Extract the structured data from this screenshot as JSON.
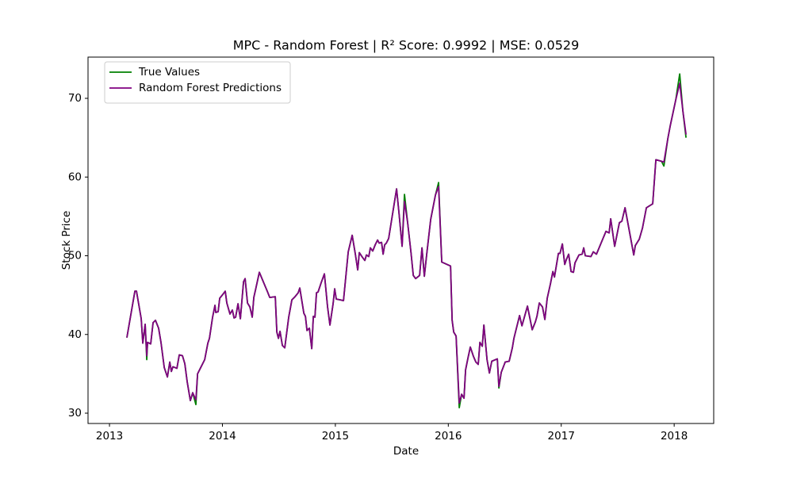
{
  "chart_data": {
    "type": "line",
    "title": "MPC - Random Forest | R² Score: 0.9992 | MSE: 0.0529",
    "xlabel": "Date",
    "ylabel": "Stock Price",
    "xlim": [
      2012.81,
      2018.35
    ],
    "ylim": [
      28.69,
      75.24
    ],
    "xticks": [
      2013,
      2014,
      2015,
      2016,
      2017,
      2018
    ],
    "yticks": [
      30,
      40,
      50,
      60,
      70
    ],
    "grid": false,
    "legend": "upper left",
    "x": [
      2013.154,
      2013.225,
      2013.239,
      2013.281,
      2013.295,
      2013.316,
      2013.33,
      2013.337,
      2013.365,
      2013.386,
      2013.407,
      2013.435,
      2013.456,
      2013.485,
      2013.513,
      2013.534,
      2013.548,
      2013.562,
      2013.597,
      2013.618,
      2013.646,
      2013.667,
      2013.688,
      2013.716,
      2013.737,
      2013.765,
      2013.78,
      2013.808,
      2013.843,
      2013.871,
      2013.885,
      2013.913,
      2013.934,
      2013.941,
      2013.962,
      2013.976,
      2014.004,
      2014.025,
      2014.039,
      2014.067,
      2014.088,
      2014.103,
      2014.117,
      2014.138,
      2014.159,
      2014.187,
      2014.201,
      2014.222,
      2014.243,
      2014.264,
      2014.278,
      2014.292,
      2014.327,
      2014.397,
      2014.419,
      2014.468,
      2014.482,
      2014.496,
      2014.51,
      2014.531,
      2014.552,
      2014.587,
      2014.615,
      2014.643,
      2014.671,
      2014.685,
      2014.721,
      2014.735,
      2014.749,
      2014.77,
      2014.791,
      2014.805,
      2014.819,
      2014.833,
      2014.847,
      2014.875,
      2014.903,
      2014.931,
      2014.952,
      2014.98,
      2014.994,
      2015.008,
      2015.044,
      2015.072,
      2015.114,
      2015.149,
      2015.177,
      2015.198,
      2015.212,
      2015.24,
      2015.261,
      2015.275,
      2015.296,
      2015.31,
      2015.331,
      2015.353,
      2015.374,
      2015.388,
      2015.409,
      2015.423,
      2015.437,
      2015.451,
      2015.472,
      2015.542,
      2015.563,
      2015.591,
      2015.612,
      2015.64,
      2015.669,
      2015.69,
      2015.711,
      2015.746,
      2015.767,
      2015.788,
      2015.809,
      2015.844,
      2015.886,
      2015.914,
      2015.942,
      2016.02,
      2016.034,
      2016.048,
      2016.069,
      2016.097,
      2016.118,
      2016.139,
      2016.153,
      2016.174,
      2016.195,
      2016.223,
      2016.244,
      2016.265,
      2016.28,
      2016.301,
      2016.315,
      2016.343,
      2016.364,
      2016.385,
      2016.434,
      2016.448,
      2016.469,
      2016.504,
      2016.539,
      2016.567,
      2016.581,
      2016.631,
      2016.652,
      2016.701,
      2016.743,
      2016.771,
      2016.785,
      2016.806,
      2016.834,
      2016.855,
      2016.876,
      2016.904,
      2016.926,
      2016.94,
      2016.975,
      2016.989,
      2017.01,
      2017.031,
      2017.045,
      2017.066,
      2017.087,
      2017.108,
      2017.122,
      2017.157,
      2017.185,
      2017.199,
      2017.213,
      2017.263,
      2017.284,
      2017.312,
      2017.396,
      2017.424,
      2017.438,
      2017.473,
      2017.515,
      2017.537,
      2017.565,
      2017.614,
      2017.642,
      2017.656,
      2017.691,
      2017.719,
      2017.754,
      2017.81,
      2017.838,
      2017.888,
      2017.909,
      2017.944,
      2017.965,
      2018.014,
      2018.049,
      2018.077,
      2018.105
    ],
    "series": [
      {
        "name": "True Values",
        "color": "#008000",
        "values": [
          39.6,
          45.5,
          45.5,
          42,
          38.9,
          41.3,
          36.8,
          39,
          38.8,
          41.5,
          41.8,
          40.8,
          39,
          35.8,
          34.6,
          36.5,
          35.3,
          35.9,
          35.7,
          37.4,
          37.3,
          36.3,
          34,
          31.6,
          32.6,
          31.1,
          35,
          35.8,
          36.8,
          38.9,
          39.5,
          42.2,
          43.7,
          42.8,
          42.9,
          44.6,
          45.1,
          45.5,
          44,
          42.6,
          43.1,
          42.1,
          42.2,
          43.9,
          42,
          46.7,
          47.1,
          44,
          43.5,
          42.2,
          44.7,
          45.6,
          47.9,
          45.5,
          44.7,
          44.8,
          40.3,
          39.5,
          40.4,
          38.6,
          38.3,
          42.2,
          44.4,
          44.8,
          45.3,
          45.9,
          42.7,
          42.3,
          40.5,
          40.8,
          38.2,
          42.3,
          42.2,
          45.3,
          45.4,
          46.6,
          47.7,
          43.5,
          41.2,
          43.9,
          45.8,
          44.5,
          44.4,
          44.3,
          50.5,
          52.6,
          50.2,
          48.2,
          50.4,
          49.8,
          49.4,
          50.1,
          49.9,
          51,
          50.6,
          51.4,
          52,
          51.6,
          51.7,
          50.2,
          51.4,
          51.6,
          52.2,
          58.5,
          55.5,
          51.2,
          57.8,
          54.2,
          50.5,
          47.5,
          47.1,
          47.5,
          51,
          47.4,
          50.2,
          54.6,
          57.7,
          59.3,
          49.2,
          48.7,
          41.8,
          40.3,
          39.8,
          30.7,
          32.4,
          31.9,
          35.5,
          37,
          38.4,
          37.2,
          36.5,
          36.2,
          39,
          38.5,
          41.2,
          36.8,
          35.1,
          36.6,
          36.9,
          33.2,
          35.2,
          36.5,
          36.6,
          38.3,
          39.5,
          42.4,
          41.1,
          43.6,
          40.6,
          41.6,
          42.3,
          44,
          43.5,
          41.9,
          44.6,
          46.4,
          48,
          47.3,
          50.3,
          50.3,
          51.5,
          48.9,
          49.5,
          50.2,
          48,
          47.9,
          49.1,
          50.1,
          50.2,
          51,
          50,
          49.9,
          50.5,
          50.2,
          53.1,
          52.9,
          54.7,
          51.2,
          54.2,
          54.4,
          56.1,
          52.3,
          50.1,
          51.3,
          52.1,
          53.5,
          56.1,
          56.6,
          62.2,
          62,
          61.4,
          64.9,
          66.5,
          69.8,
          73.1,
          68.4,
          65
        ]
      },
      {
        "name": "Random Forest Predictions",
        "color": "#800080",
        "values": [
          39.6,
          45.5,
          45.5,
          42,
          38.9,
          41.3,
          37.3,
          39,
          38.8,
          41.5,
          41.8,
          40.8,
          39,
          35.8,
          34.6,
          36.5,
          35.3,
          35.9,
          35.7,
          37.4,
          37.3,
          36.3,
          34,
          31.6,
          32.6,
          31.7,
          35,
          35.8,
          36.8,
          38.9,
          39.5,
          42.2,
          43.7,
          42.8,
          42.9,
          44.6,
          45.1,
          45.5,
          44,
          42.6,
          43.1,
          42.1,
          42.2,
          43.9,
          42,
          46.7,
          47.1,
          44,
          43.5,
          42.2,
          44.7,
          45.6,
          47.9,
          45.5,
          44.7,
          44.8,
          40.3,
          39.5,
          40.4,
          38.6,
          38.3,
          42.2,
          44.4,
          44.8,
          45.3,
          45.9,
          42.7,
          42.3,
          40.5,
          40.8,
          38.2,
          42.3,
          42.2,
          45.3,
          45.4,
          46.6,
          47.7,
          43.5,
          41.2,
          43.9,
          45.8,
          44.5,
          44.4,
          44.3,
          50.5,
          52.6,
          50.2,
          48.2,
          50.4,
          49.8,
          49.4,
          50.1,
          49.9,
          51,
          50.6,
          51.4,
          52,
          51.6,
          51.7,
          50.2,
          51.4,
          51.6,
          52.2,
          58.5,
          55.5,
          51.2,
          56.9,
          54.2,
          50.5,
          47.5,
          47.1,
          47.5,
          51,
          47.4,
          50.2,
          54.6,
          57.7,
          58.8,
          49.2,
          48.7,
          41.8,
          40.3,
          39.8,
          31.3,
          32.4,
          31.9,
          35.5,
          37,
          38.4,
          37.2,
          36.5,
          36.2,
          39,
          38.5,
          41.2,
          36.8,
          35.1,
          36.6,
          36.9,
          33.4,
          35.2,
          36.5,
          36.6,
          38.3,
          39.5,
          42.4,
          41.1,
          43.6,
          40.6,
          41.6,
          42.3,
          44,
          43.5,
          41.9,
          44.6,
          46.4,
          48,
          47.3,
          50.3,
          50.3,
          51.5,
          48.9,
          49.5,
          50.2,
          48,
          47.9,
          49.1,
          50.1,
          50.2,
          51,
          50,
          49.9,
          50.5,
          50.2,
          53.1,
          52.9,
          54.7,
          51.2,
          54.2,
          54.4,
          56.1,
          52.3,
          50.1,
          51.3,
          52.1,
          53.5,
          56.1,
          56.6,
          62.2,
          62,
          61.9,
          64.9,
          66.5,
          69.8,
          71.9,
          68.4,
          65.4
        ]
      }
    ]
  }
}
